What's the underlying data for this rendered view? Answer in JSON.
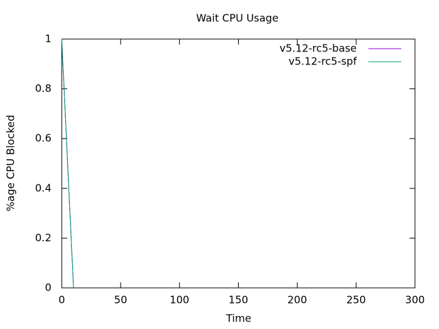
{
  "chart_data": {
    "type": "line",
    "title": "Wait CPU Usage",
    "x_label": "Time",
    "y_label": "%age CPU Blocked",
    "x": [
      0,
      1,
      10
    ],
    "series": [
      {
        "name": "v5.12-rc5-base",
        "color": "#9400d3",
        "values": [
          1,
          0.9,
          0
        ]
      },
      {
        "name": "v5.12-rc5-spf",
        "color": "#009e73",
        "values": [
          1,
          0.9,
          0
        ]
      }
    ],
    "xlim": [
      0,
      300
    ],
    "xticks": [
      0,
      50,
      100,
      150,
      200,
      250,
      300
    ],
    "ylim": [
      0,
      1
    ],
    "yticks": [
      0,
      0.2,
      0.4,
      0.6,
      0.8,
      1
    ],
    "legend": "top-right"
  }
}
